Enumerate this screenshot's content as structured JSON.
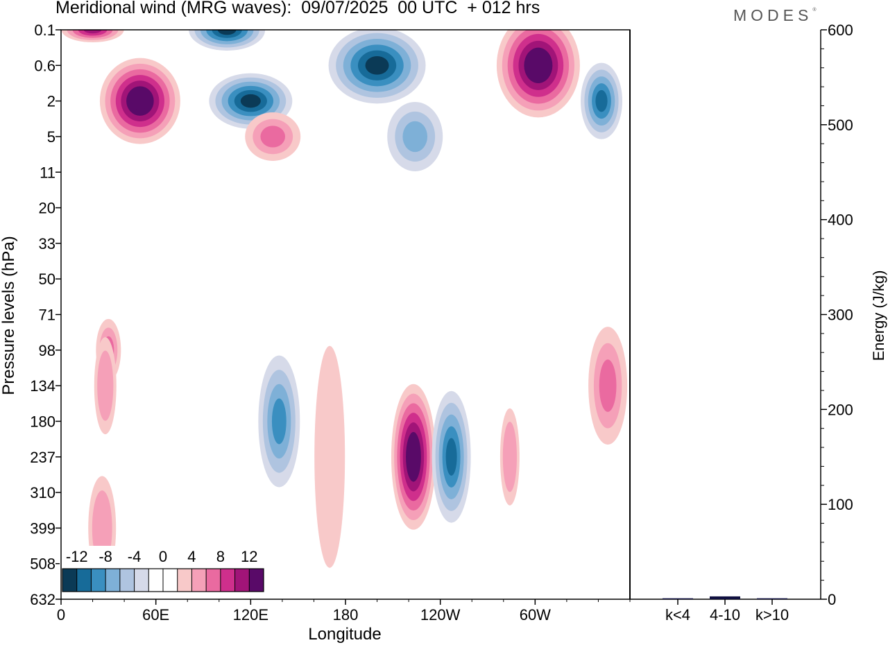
{
  "title": "Meridional wind (MRG waves):  09/07/2025  00 UTC  + 012 hrs",
  "brand": "MODES",
  "brand_mark": "®",
  "colorbar": {
    "tick_labels": [
      "-12",
      "-8",
      "-4",
      "0",
      "4",
      "8",
      "12"
    ],
    "colors": [
      "#0b3a56",
      "#176b99",
      "#3a8fc0",
      "#7eb0d7",
      "#afc4e0",
      "#d6dae9",
      "#ffffff",
      "#ffffff",
      "#f8c9c9",
      "#f5a0b8",
      "#ea6aa0",
      "#cf2f8c",
      "#a11478",
      "#590a68"
    ]
  },
  "chart_data": [
    {
      "type": "heatmap",
      "xlabel": "Longitude",
      "ylabel": "Pressure levels (hPa)",
      "x_ticks": [
        "0",
        "60E",
        "120E",
        "180",
        "120W",
        "60W"
      ],
      "x_tick_values": [
        0,
        60,
        120,
        180,
        240,
        300
      ],
      "xlim": [
        0,
        360
      ],
      "y_ticks": [
        "0.1",
        "0.6",
        "2",
        "5",
        "11",
        "20",
        "33",
        "50",
        "71",
        "98",
        "134",
        "180",
        "237",
        "310",
        "399",
        "508",
        "632"
      ],
      "field": "Meridional wind (MRG waves)",
      "contour_levels": [
        -12,
        -10,
        -8,
        -6,
        -4,
        -2,
        0,
        2,
        4,
        6,
        8,
        10,
        12
      ],
      "features": [
        {
          "lon": 50,
          "level": "2",
          "value": 14
        },
        {
          "lon": 20,
          "level": "0.1",
          "value": 10
        },
        {
          "lon": 105,
          "level": "0.1",
          "value": -12
        },
        {
          "lon": 120,
          "level": "2",
          "value": -12
        },
        {
          "lon": 200,
          "level": "0.6",
          "value": -12
        },
        {
          "lon": 302,
          "level": "0.6",
          "value": 14
        },
        {
          "lon": 342,
          "level": "2",
          "value": -10
        },
        {
          "lon": 134,
          "level": "5",
          "value": 6
        },
        {
          "lon": 224,
          "level": "5",
          "value": -6
        },
        {
          "lon": 30,
          "level": "98",
          "value": 6
        },
        {
          "lon": 28,
          "level": "134",
          "value": 5
        },
        {
          "lon": 138,
          "level": "180",
          "value": -8
        },
        {
          "lon": 223,
          "level": "237",
          "value": 14
        },
        {
          "lon": 247,
          "level": "237",
          "value": -10
        },
        {
          "lon": 284,
          "level": "237",
          "value": 5
        },
        {
          "lon": 346,
          "level": "134",
          "value": 6
        },
        {
          "lon": 26,
          "level": "399",
          "value": 5
        },
        {
          "lon": 170,
          "level": "237",
          "value": 3
        }
      ]
    },
    {
      "type": "bar",
      "categories": [
        "k<4",
        "4-10",
        "k>10"
      ],
      "values": [
        1,
        3,
        1
      ],
      "ylabel": "Energy (J/kg)",
      "ylim": [
        0,
        600
      ],
      "y_ticks": [
        "0",
        "100",
        "200",
        "300",
        "400",
        "500",
        "600"
      ],
      "bar_color": "#101040"
    }
  ]
}
